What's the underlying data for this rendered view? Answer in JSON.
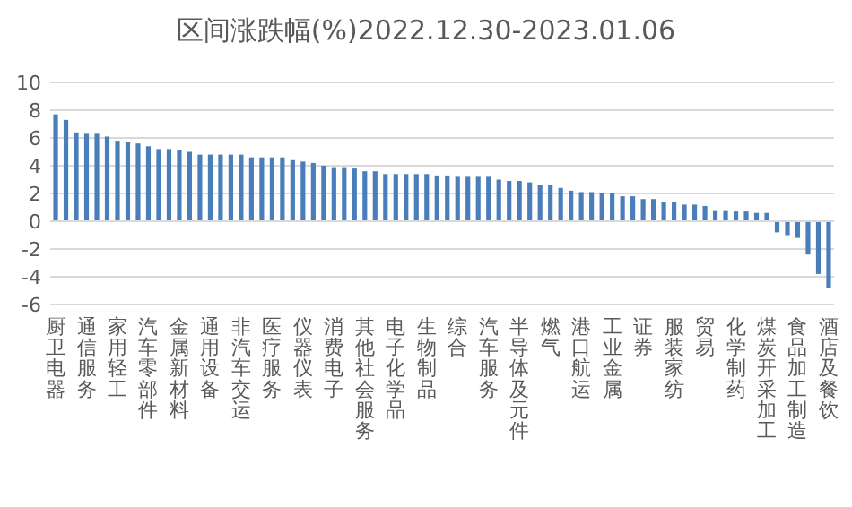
{
  "chart_data": {
    "type": "bar",
    "title": "区间涨跌幅(%)2022.12.30-2023.01.06",
    "categories": [
      "厨卫电器",
      null,
      null,
      "通信服务",
      null,
      null,
      "家用轻工",
      null,
      null,
      "汽车零部件",
      null,
      null,
      "金属新材料",
      null,
      null,
      "通用设备",
      null,
      null,
      "非汽车交运",
      null,
      null,
      "医疗服务",
      null,
      null,
      "仪器仪表",
      null,
      null,
      "消费电子",
      null,
      null,
      "其他社会服务",
      null,
      null,
      "电子化学品",
      null,
      null,
      "生物制品",
      null,
      null,
      "综合",
      null,
      null,
      "汽车服务",
      null,
      null,
      "半导体及元件",
      null,
      null,
      "燃气",
      null,
      null,
      "港口航运",
      null,
      null,
      "工业金属",
      null,
      null,
      "证券",
      null,
      null,
      "服装家纺",
      null,
      null,
      "贸易",
      null,
      null,
      "化学制药",
      null,
      null,
      "煤炭开采加工",
      null,
      null,
      "食品加工制造",
      null,
      null,
      "酒店及餐饮"
    ],
    "values": [
      7.7,
      7.3,
      6.4,
      6.3,
      6.3,
      6.1,
      5.8,
      5.7,
      5.6,
      5.4,
      5.2,
      5.2,
      5.1,
      5.0,
      4.8,
      4.8,
      4.8,
      4.8,
      4.8,
      4.6,
      4.6,
      4.6,
      4.6,
      4.4,
      4.3,
      4.2,
      4.0,
      3.9,
      3.9,
      3.8,
      3.6,
      3.6,
      3.4,
      3.4,
      3.4,
      3.4,
      3.4,
      3.3,
      3.3,
      3.2,
      3.2,
      3.2,
      3.2,
      3.0,
      2.9,
      2.9,
      2.8,
      2.6,
      2.6,
      2.4,
      2.2,
      2.1,
      2.1,
      2.0,
      2.0,
      1.8,
      1.8,
      1.6,
      1.6,
      1.4,
      1.4,
      1.2,
      1.2,
      1.1,
      0.8,
      0.8,
      0.7,
      0.7,
      0.6,
      0.6,
      -0.8,
      -1.0,
      -1.2,
      -2.4,
      -3.8,
      -4.8
    ],
    "color": "#4a7ebb",
    "ylim": [
      -6,
      10
    ],
    "yticks": [
      -6,
      -4,
      -2,
      0,
      2,
      4,
      6,
      8,
      10
    ],
    "grid": "y"
  }
}
